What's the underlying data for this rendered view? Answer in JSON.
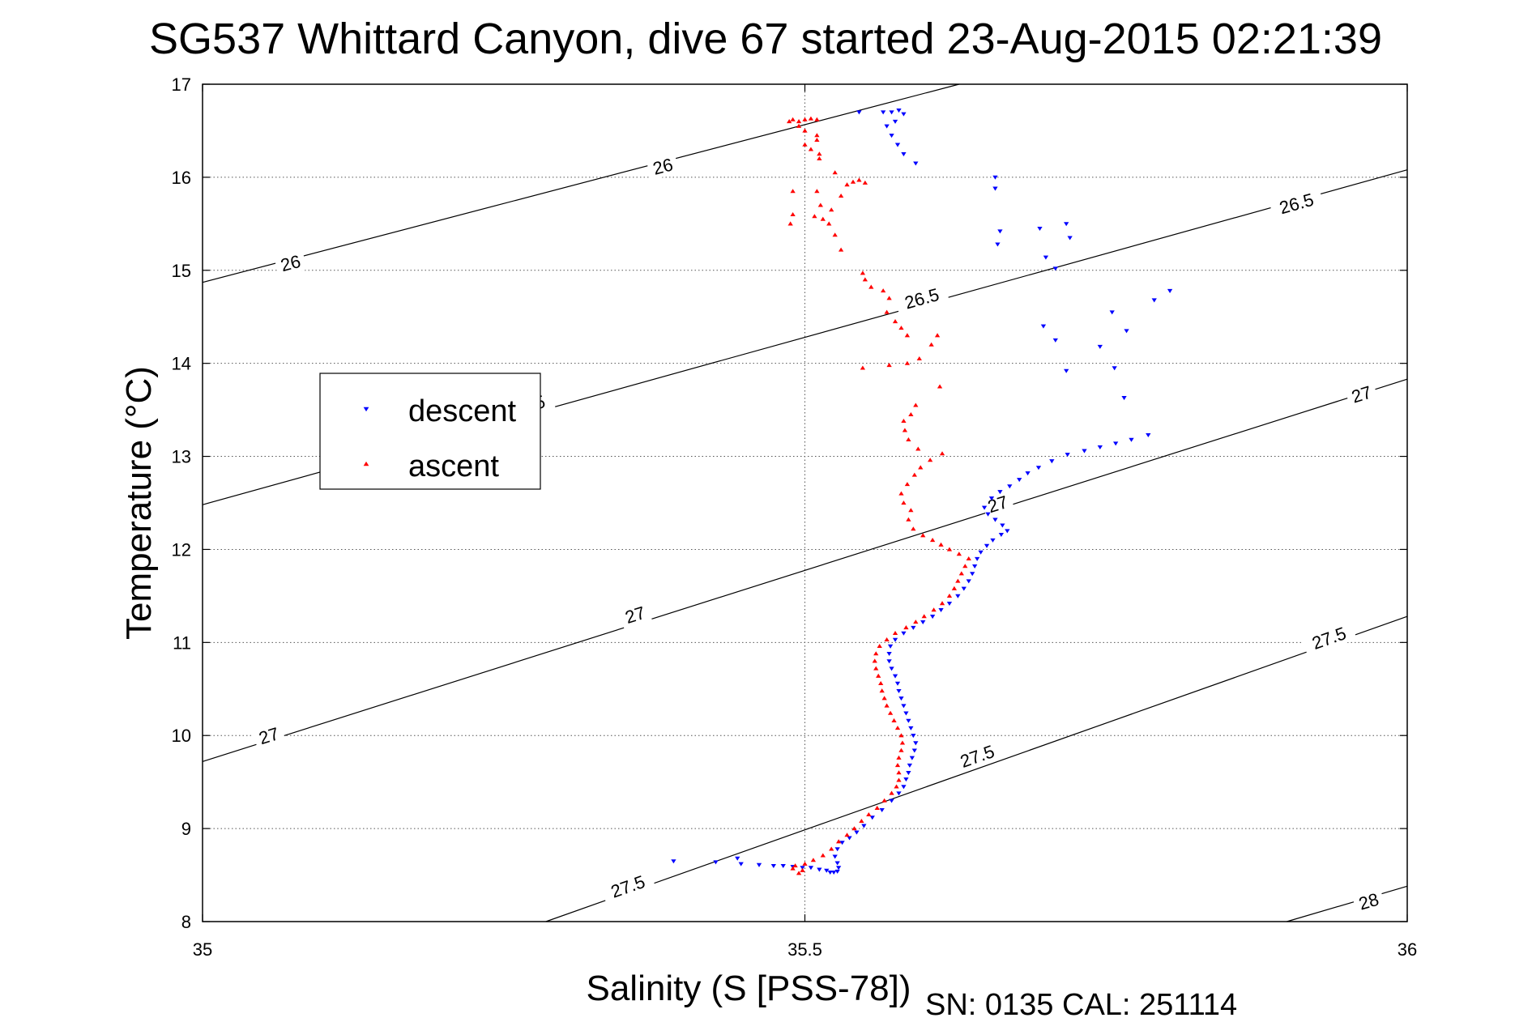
{
  "chart_data": {
    "type": "scatter",
    "title": "SG537 Whittard Canyon, dive 67 started 23-Aug-2015 02:21:39",
    "xlabel": "Salinity (S [PSS-78])",
    "ylabel": "Temperature (°C)",
    "xlim": [
      35,
      36
    ],
    "ylim": [
      8,
      17
    ],
    "x_ticks": [
      35,
      35.5,
      36
    ],
    "x_tick_labels": [
      "35",
      "35.5",
      "36"
    ],
    "y_ticks": [
      8,
      9,
      10,
      11,
      12,
      13,
      14,
      15,
      16,
      17
    ],
    "y_tick_labels": [
      "8",
      "9",
      "10",
      "11",
      "12",
      "13",
      "14",
      "15",
      "16",
      "17"
    ],
    "grid": true,
    "legend_position": "upper-left",
    "footnote": "SN: 0135  CAL: 251114",
    "density_contours": [
      {
        "label": "26",
        "points": [
          [
            35.0,
            14.87
          ],
          [
            35.628,
            17.0
          ]
        ],
        "label_positions": [
          [
            35.073,
            15.08
          ],
          [
            35.382,
            16.12
          ]
        ]
      },
      {
        "label": "26.5",
        "points": [
          [
            35.0,
            12.48
          ],
          [
            36.0,
            16.08
          ]
        ],
        "label_positions": [
          [
            35.27,
            13.55
          ],
          [
            35.597,
            14.7
          ],
          [
            35.908,
            15.72
          ]
        ]
      },
      {
        "label": "27",
        "points": [
          [
            35.0,
            9.72
          ],
          [
            36.0,
            13.83
          ]
        ],
        "label_positions": [
          [
            35.055,
            10.0
          ],
          [
            35.359,
            11.3
          ],
          [
            35.66,
            12.49
          ],
          [
            35.962,
            13.67
          ]
        ]
      },
      {
        "label": "27.5",
        "points": [
          [
            35.285,
            8.0
          ],
          [
            36.0,
            11.28
          ]
        ],
        "label_positions": [
          [
            35.353,
            8.38
          ],
          [
            35.643,
            9.78
          ],
          [
            35.935,
            11.05
          ]
        ]
      },
      {
        "label": "28",
        "points": [
          [
            35.9,
            8.0
          ],
          [
            36.0,
            8.38
          ]
        ],
        "label_positions": [
          [
            35.968,
            8.22
          ]
        ]
      }
    ],
    "series": [
      {
        "name": "descent",
        "color": "#0000ff",
        "marker": "triangle-down",
        "points": [
          [
            35.444,
            8.68
          ],
          [
            35.391,
            8.65
          ],
          [
            35.426,
            8.64
          ],
          [
            35.447,
            8.62
          ],
          [
            35.462,
            8.61
          ],
          [
            35.474,
            8.6
          ],
          [
            35.482,
            8.6
          ],
          [
            35.49,
            8.59
          ],
          [
            35.498,
            8.58
          ],
          [
            35.505,
            8.58
          ],
          [
            35.512,
            8.56
          ],
          [
            35.518,
            8.55
          ],
          [
            35.521,
            8.53
          ],
          [
            35.524,
            8.53
          ],
          [
            35.527,
            8.54
          ],
          [
            35.528,
            8.58
          ],
          [
            35.527,
            8.63
          ],
          [
            35.525,
            8.7
          ],
          [
            35.527,
            8.78
          ],
          [
            35.531,
            8.85
          ],
          [
            35.537,
            8.9
          ],
          [
            35.543,
            8.96
          ],
          [
            35.549,
            9.03
          ],
          [
            35.556,
            9.12
          ],
          [
            35.564,
            9.2
          ],
          [
            35.572,
            9.3
          ],
          [
            35.578,
            9.38
          ],
          [
            35.582,
            9.45
          ],
          [
            35.584,
            9.53
          ],
          [
            35.586,
            9.6
          ],
          [
            35.587,
            9.68
          ],
          [
            35.589,
            9.76
          ],
          [
            35.591,
            9.84
          ],
          [
            35.592,
            9.92
          ],
          [
            35.59,
            10.0
          ],
          [
            35.588,
            10.08
          ],
          [
            35.586,
            10.16
          ],
          [
            35.584,
            10.24
          ],
          [
            35.582,
            10.32
          ],
          [
            35.58,
            10.4
          ],
          [
            35.578,
            10.48
          ],
          [
            35.577,
            10.56
          ],
          [
            35.575,
            10.64
          ],
          [
            35.572,
            10.72
          ],
          [
            35.57,
            10.8
          ],
          [
            35.57,
            10.88
          ],
          [
            35.571,
            10.96
          ],
          [
            35.575,
            11.03
          ],
          [
            35.582,
            11.1
          ],
          [
            35.59,
            11.16
          ],
          [
            35.598,
            11.22
          ],
          [
            35.606,
            11.28
          ],
          [
            35.613,
            11.35
          ],
          [
            35.62,
            11.42
          ],
          [
            35.627,
            11.5
          ],
          [
            35.632,
            11.58
          ],
          [
            35.636,
            11.66
          ],
          [
            35.639,
            11.74
          ],
          [
            35.641,
            11.82
          ],
          [
            35.643,
            11.9
          ],
          [
            35.646,
            11.97
          ],
          [
            35.651,
            12.04
          ],
          [
            35.656,
            12.1
          ],
          [
            35.663,
            12.16
          ],
          [
            35.668,
            12.2
          ],
          [
            35.664,
            12.26
          ],
          [
            35.658,
            12.32
          ],
          [
            35.652,
            12.38
          ],
          [
            35.649,
            12.45
          ],
          [
            35.655,
            12.55
          ],
          [
            35.662,
            12.62
          ],
          [
            35.67,
            12.68
          ],
          [
            35.678,
            12.75
          ],
          [
            35.685,
            12.82
          ],
          [
            35.694,
            12.88
          ],
          [
            35.705,
            12.95
          ],
          [
            35.718,
            13.02
          ],
          [
            35.732,
            13.06
          ],
          [
            35.745,
            13.1
          ],
          [
            35.758,
            13.14
          ],
          [
            35.771,
            13.18
          ],
          [
            35.785,
            13.23
          ],
          [
            35.765,
            13.63
          ],
          [
            35.757,
            13.95
          ],
          [
            35.745,
            14.18
          ],
          [
            35.767,
            14.35
          ],
          [
            35.755,
            14.55
          ],
          [
            35.79,
            14.68
          ],
          [
            35.803,
            14.78
          ],
          [
            35.698,
            14.4
          ],
          [
            35.708,
            14.25
          ],
          [
            35.717,
            13.92
          ],
          [
            35.72,
            15.35
          ],
          [
            35.717,
            15.5
          ],
          [
            35.708,
            15.02
          ],
          [
            35.7,
            15.14
          ],
          [
            35.658,
            15.88
          ],
          [
            35.66,
            15.28
          ],
          [
            35.662,
            15.42
          ],
          [
            35.695,
            15.45
          ],
          [
            35.658,
            16.0
          ],
          [
            35.592,
            16.15
          ],
          [
            35.582,
            16.25
          ],
          [
            35.577,
            16.35
          ],
          [
            35.572,
            16.45
          ],
          [
            35.568,
            16.55
          ],
          [
            35.575,
            16.6
          ],
          [
            35.582,
            16.68
          ],
          [
            35.565,
            16.7
          ],
          [
            35.572,
            16.7
          ],
          [
            35.578,
            16.72
          ],
          [
            35.545,
            16.7
          ]
        ]
      },
      {
        "name": "ascent",
        "color": "#ff0000",
        "marker": "triangle-up",
        "points": [
          [
            35.495,
            8.52
          ],
          [
            35.498,
            8.55
          ],
          [
            35.49,
            8.57
          ],
          [
            35.492,
            8.6
          ],
          [
            35.5,
            8.62
          ],
          [
            35.507,
            8.66
          ],
          [
            35.515,
            8.71
          ],
          [
            35.522,
            8.78
          ],
          [
            35.528,
            8.86
          ],
          [
            35.535,
            8.93
          ],
          [
            35.541,
            9.0
          ],
          [
            35.547,
            9.08
          ],
          [
            35.553,
            9.15
          ],
          [
            35.56,
            9.22
          ],
          [
            35.566,
            9.3
          ],
          [
            35.572,
            9.38
          ],
          [
            35.576,
            9.45
          ],
          [
            35.578,
            9.52
          ],
          [
            35.578,
            9.6
          ],
          [
            35.577,
            9.68
          ],
          [
            35.578,
            9.76
          ],
          [
            35.58,
            9.84
          ],
          [
            35.581,
            9.92
          ],
          [
            35.58,
            10.0
          ],
          [
            35.577,
            10.08
          ],
          [
            35.574,
            10.16
          ],
          [
            35.571,
            10.24
          ],
          [
            35.568,
            10.32
          ],
          [
            35.566,
            10.4
          ],
          [
            35.564,
            10.48
          ],
          [
            35.563,
            10.56
          ],
          [
            35.561,
            10.64
          ],
          [
            35.559,
            10.72
          ],
          [
            35.558,
            10.8
          ],
          [
            35.559,
            10.88
          ],
          [
            35.562,
            10.96
          ],
          [
            35.568,
            11.03
          ],
          [
            35.575,
            11.1
          ],
          [
            35.584,
            11.16
          ],
          [
            35.592,
            11.22
          ],
          [
            35.599,
            11.28
          ],
          [
            35.607,
            11.35
          ],
          [
            35.614,
            11.42
          ],
          [
            35.62,
            11.5
          ],
          [
            35.624,
            11.58
          ],
          [
            35.627,
            11.66
          ],
          [
            35.63,
            11.74
          ],
          [
            35.633,
            11.82
          ],
          [
            35.636,
            11.9
          ],
          [
            35.628,
            11.95
          ],
          [
            35.62,
            12.0
          ],
          [
            35.613,
            12.05
          ],
          [
            35.606,
            12.1
          ],
          [
            35.598,
            12.15
          ],
          [
            35.59,
            12.22
          ],
          [
            35.586,
            12.32
          ],
          [
            35.588,
            12.42
          ],
          [
            35.582,
            12.5
          ],
          [
            35.58,
            12.6
          ],
          [
            35.585,
            12.7
          ],
          [
            35.591,
            12.8
          ],
          [
            35.596,
            12.88
          ],
          [
            35.604,
            12.96
          ],
          [
            35.614,
            13.03
          ],
          [
            35.594,
            13.08
          ],
          [
            35.586,
            13.18
          ],
          [
            35.583,
            13.28
          ],
          [
            35.582,
            13.38
          ],
          [
            35.588,
            13.45
          ],
          [
            35.592,
            13.55
          ],
          [
            35.612,
            13.75
          ],
          [
            35.57,
            13.98
          ],
          [
            35.585,
            14.0
          ],
          [
            35.595,
            14.05
          ],
          [
            35.605,
            14.2
          ],
          [
            35.61,
            14.3
          ],
          [
            35.585,
            14.3
          ],
          [
            35.58,
            14.38
          ],
          [
            35.575,
            14.45
          ],
          [
            35.548,
            13.95
          ],
          [
            35.568,
            14.55
          ],
          [
            35.57,
            14.7
          ],
          [
            35.565,
            14.78
          ],
          [
            35.555,
            14.82
          ],
          [
            35.55,
            14.9
          ],
          [
            35.548,
            14.97
          ],
          [
            35.53,
            15.22
          ],
          [
            35.525,
            15.38
          ],
          [
            35.52,
            15.5
          ],
          [
            35.515,
            15.55
          ],
          [
            35.508,
            15.58
          ],
          [
            35.513,
            15.7
          ],
          [
            35.522,
            15.65
          ],
          [
            35.53,
            15.8
          ],
          [
            35.51,
            15.85
          ],
          [
            35.488,
            15.5
          ],
          [
            35.49,
            15.6
          ],
          [
            35.49,
            15.85
          ],
          [
            35.535,
            15.92
          ],
          [
            35.54,
            15.95
          ],
          [
            35.545,
            15.97
          ],
          [
            35.55,
            15.94
          ],
          [
            35.525,
            16.05
          ],
          [
            35.512,
            16.2
          ],
          [
            35.512,
            16.25
          ],
          [
            35.505,
            16.3
          ],
          [
            35.5,
            16.35
          ],
          [
            35.51,
            16.4
          ],
          [
            35.51,
            16.45
          ],
          [
            35.5,
            16.5
          ],
          [
            35.495,
            16.55
          ],
          [
            35.495,
            16.6
          ],
          [
            35.5,
            16.62
          ],
          [
            35.505,
            16.63
          ],
          [
            35.51,
            16.62
          ],
          [
            35.49,
            16.62
          ],
          [
            35.487,
            16.6
          ]
        ]
      }
    ]
  }
}
